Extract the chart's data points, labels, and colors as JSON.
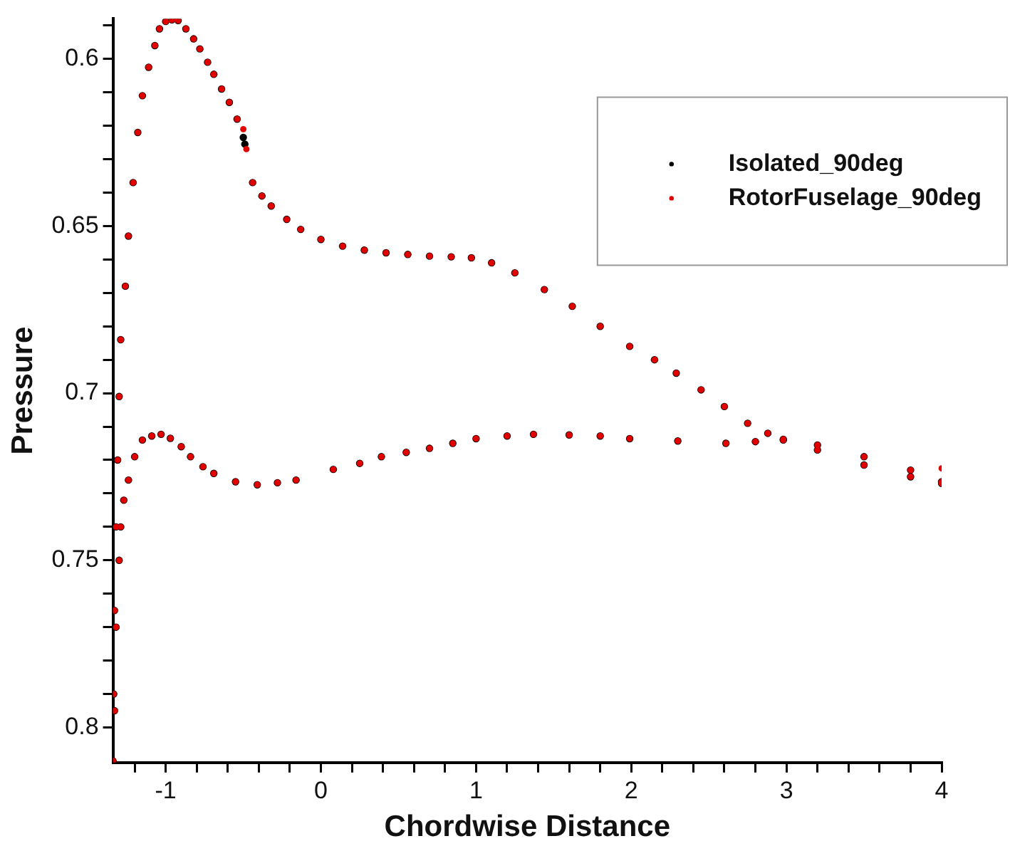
{
  "chart_data": {
    "type": "scatter",
    "xlabel": "Chordwise Distance",
    "ylabel": "Pressure",
    "xlim": [
      -1.34,
      4
    ],
    "ylim": [
      0.8105,
      0.588
    ],
    "xticks": [
      -1,
      {
        "value": -1.2,
        "label": null
      },
      {
        "value": -0.8,
        "label": null
      },
      {
        "value": -0.6,
        "label": null
      },
      {
        "value": -0.4,
        "label": null
      },
      {
        "value": -0.2,
        "label": null
      },
      0,
      {
        "value": 0.2,
        "label": null
      },
      {
        "value": 0.4,
        "label": null
      },
      {
        "value": 0.6,
        "label": null
      },
      {
        "value": 0.8,
        "label": null
      },
      1,
      {
        "value": 1.2,
        "label": null
      },
      {
        "value": 1.4,
        "label": null
      },
      {
        "value": 1.6,
        "label": null
      },
      {
        "value": 1.8,
        "label": null
      },
      2,
      {
        "value": 2.2,
        "label": null
      },
      {
        "value": 2.4,
        "label": null
      },
      {
        "value": 2.6,
        "label": null
      },
      {
        "value": 2.8,
        "label": null
      },
      3,
      {
        "value": 3.2,
        "label": null
      },
      {
        "value": 3.4,
        "label": null
      },
      {
        "value": 3.6,
        "label": null
      },
      {
        "value": 3.8,
        "label": null
      },
      4
    ],
    "yticks": [
      0.6,
      {
        "value": 0.59,
        "label": null
      },
      {
        "value": 0.61,
        "label": null
      },
      {
        "value": 0.62,
        "label": null
      },
      {
        "value": 0.63,
        "label": null
      },
      {
        "value": 0.64,
        "label": null
      },
      0.65,
      {
        "value": 0.66,
        "label": null
      },
      {
        "value": 0.67,
        "label": null
      },
      {
        "value": 0.68,
        "label": null
      },
      {
        "value": 0.69,
        "label": null
      },
      0.7,
      {
        "value": 0.71,
        "label": null
      },
      {
        "value": 0.72,
        "label": null
      },
      {
        "value": 0.73,
        "label": null
      },
      {
        "value": 0.74,
        "label": null
      },
      0.75,
      {
        "value": 0.76,
        "label": null
      },
      {
        "value": 0.77,
        "label": null
      },
      {
        "value": 0.78,
        "label": null
      },
      {
        "value": 0.79,
        "label": null
      },
      0.8
    ],
    "grid": false,
    "legend": "top right",
    "marker": "circle",
    "series": [
      {
        "name": "Isolated_90deg",
        "color": "#000000",
        "x": [
          -1.34,
          -1.335,
          -1.33,
          -1.32,
          -1.31,
          -1.3,
          -1.29,
          -1.26,
          -1.24,
          -1.21,
          -1.18,
          -1.15,
          -1.11,
          -1.07,
          -1.04,
          -1.0,
          -0.96,
          -0.92,
          -0.87,
          -0.82,
          -0.78,
          -0.73,
          -0.69,
          -0.64,
          -0.59,
          -0.54,
          -0.5,
          -0.49,
          -0.44,
          -0.38,
          -0.32,
          -0.22,
          -0.13,
          0.0,
          0.14,
          0.28,
          0.42,
          0.56,
          0.7,
          0.84,
          0.97,
          1.1,
          1.25,
          1.44,
          1.62,
          1.8,
          1.99,
          2.15,
          2.29,
          2.45,
          2.6,
          2.75,
          2.88,
          2.98,
          3.2,
          3.5,
          3.8,
          4.0,
          -1.33,
          -1.32,
          -1.3,
          -1.29,
          -1.27,
          -1.24,
          -1.2,
          -1.15,
          -1.09,
          -1.03,
          -0.97,
          -0.9,
          -0.84,
          -0.76,
          -0.69,
          -0.55,
          -0.41,
          -0.28,
          -0.16,
          0.08,
          0.25,
          0.39,
          0.55,
          0.7,
          0.85,
          1.0,
          1.2,
          1.37,
          1.6,
          1.8,
          1.99,
          2.3,
          2.61,
          2.8,
          2.98,
          3.2,
          3.5,
          3.8,
          4.0
        ],
        "values": [
          0.81,
          0.79,
          0.765,
          0.74,
          0.72,
          0.701,
          0.684,
          0.668,
          0.653,
          0.637,
          0.622,
          0.611,
          0.6025,
          0.596,
          0.591,
          0.5888,
          0.5883,
          0.5885,
          0.591,
          0.594,
          0.597,
          0.601,
          0.6046,
          0.609,
          0.613,
          0.618,
          0.6235,
          0.6255,
          0.637,
          0.641,
          0.644,
          0.648,
          0.651,
          0.654,
          0.656,
          0.6572,
          0.658,
          0.6585,
          0.659,
          0.6592,
          0.6595,
          0.661,
          0.664,
          0.669,
          0.674,
          0.68,
          0.686,
          0.69,
          0.694,
          0.699,
          0.704,
          0.709,
          0.712,
          0.714,
          0.717,
          0.7215,
          0.725,
          0.727,
          0.795,
          0.77,
          0.75,
          0.74,
          0.732,
          0.726,
          0.719,
          0.714,
          0.7128,
          0.7123,
          0.7135,
          0.716,
          0.719,
          0.722,
          0.724,
          0.7265,
          0.7274,
          0.7268,
          0.726,
          0.7228,
          0.721,
          0.719,
          0.7177,
          0.7165,
          0.715,
          0.7136,
          0.7128,
          0.7123,
          0.7125,
          0.7128,
          0.7136,
          0.7143,
          0.715,
          0.7145,
          0.7138,
          0.7155,
          0.719,
          0.723,
          0.7265
        ]
      },
      {
        "name": "RotorFuselage_90deg",
        "color": "#e00000",
        "x": [
          -1.34,
          -1.335,
          -1.33,
          -1.32,
          -1.31,
          -1.3,
          -1.29,
          -1.26,
          -1.24,
          -1.21,
          -1.18,
          -1.15,
          -1.11,
          -1.07,
          -1.04,
          -1.0,
          -0.96,
          -0.92,
          -0.87,
          -0.82,
          -0.78,
          -0.73,
          -0.69,
          -0.64,
          -0.59,
          -0.54,
          -0.5,
          -0.48,
          -0.44,
          -0.38,
          -0.32,
          -0.22,
          -0.13,
          0.0,
          0.14,
          0.28,
          0.42,
          0.56,
          0.7,
          0.84,
          0.97,
          1.1,
          1.25,
          1.44,
          1.62,
          1.8,
          1.99,
          2.15,
          2.29,
          2.45,
          2.6,
          2.75,
          2.88,
          2.98,
          3.2,
          3.5,
          3.8,
          4.0,
          -1.33,
          -1.32,
          -1.3,
          -1.29,
          -1.27,
          -1.24,
          -1.2,
          -1.15,
          -1.09,
          -1.03,
          -0.97,
          -0.9,
          -0.84,
          -0.76,
          -0.69,
          -0.55,
          -0.41,
          -0.28,
          -0.16,
          0.08,
          0.25,
          0.39,
          0.55,
          0.7,
          0.85,
          1.0,
          1.2,
          1.37,
          1.6,
          1.8,
          1.99,
          2.3,
          2.61,
          2.8,
          2.98,
          3.2,
          3.5,
          3.8,
          4.0,
          4.0
        ],
        "values": [
          0.81,
          0.79,
          0.765,
          0.74,
          0.72,
          0.701,
          0.684,
          0.668,
          0.653,
          0.637,
          0.622,
          0.611,
          0.6025,
          0.596,
          0.591,
          0.5888,
          0.5883,
          0.5885,
          0.591,
          0.594,
          0.597,
          0.601,
          0.6046,
          0.609,
          0.613,
          0.618,
          0.621,
          0.627,
          0.637,
          0.641,
          0.644,
          0.648,
          0.651,
          0.654,
          0.656,
          0.6572,
          0.658,
          0.6585,
          0.659,
          0.6592,
          0.6595,
          0.661,
          0.664,
          0.669,
          0.674,
          0.68,
          0.686,
          0.69,
          0.694,
          0.699,
          0.704,
          0.709,
          0.712,
          0.714,
          0.717,
          0.7215,
          0.725,
          0.727,
          0.795,
          0.77,
          0.75,
          0.74,
          0.732,
          0.726,
          0.719,
          0.714,
          0.7128,
          0.7123,
          0.7135,
          0.716,
          0.719,
          0.722,
          0.724,
          0.7265,
          0.7274,
          0.7268,
          0.726,
          0.7228,
          0.721,
          0.719,
          0.7177,
          0.7165,
          0.715,
          0.7136,
          0.7128,
          0.7123,
          0.7125,
          0.7128,
          0.7136,
          0.7143,
          0.715,
          0.7145,
          0.7138,
          0.7155,
          0.719,
          0.723,
          0.7265,
          0.7225
        ]
      }
    ]
  }
}
